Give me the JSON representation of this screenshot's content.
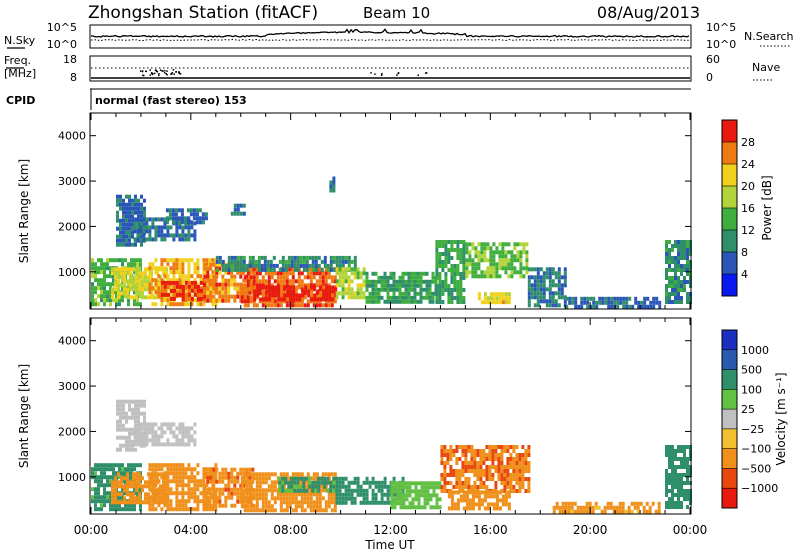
{
  "header": {
    "station": "Zhongshan Station (fitACF)",
    "beam": "Beam 10",
    "date": "08/Aug/2013"
  },
  "top_panels": {
    "nsky_label": "N.Sky",
    "nsky_ticks": [
      "10^5",
      "10^0"
    ],
    "nsearch_label": "N.Search",
    "nsearch_ticks": [
      "10^5",
      "10^0"
    ],
    "freq_label": "Freq.",
    "freq_unit": "[MHz]",
    "freq_ticks": [
      "18",
      "8"
    ],
    "nave_label": "Nave",
    "nave_ticks": [
      "60",
      "0"
    ],
    "cpid_label": "CPID",
    "cpid_text": "normal (fast stereo) 153"
  },
  "colors": {
    "power": [
      "#0a18f0",
      "#2a56b8",
      "#2f8f6a",
      "#3fae3f",
      "#b2d43a",
      "#f0d21e",
      "#f07a12",
      "#e81a10"
    ],
    "velocity": [
      "#1a2fc0",
      "#2a5ab0",
      "#2f8f6a",
      "#62c044",
      "#c0c0c0",
      "#f3c030",
      "#f0901a",
      "#e84810",
      "#e81a10"
    ]
  },
  "chart_data": [
    {
      "type": "heatmap",
      "name": "power",
      "ylabel": "Slant Range [km]",
      "yticks": [
        "1000",
        "2000",
        "3000",
        "4000"
      ],
      "ylim": [
        180,
        4500
      ],
      "xlim": [
        0,
        24
      ],
      "colorbar_label": "Power [dB]",
      "colorbar_ticks": [
        "4",
        "8",
        "12",
        "16",
        "20",
        "24",
        "28"
      ],
      "colorbar_range": [
        0,
        32
      ],
      "blobs": [
        {
          "t0": 1.0,
          "t1": 2.1,
          "r0": 1600,
          "r1": 2700,
          "v": 7
        },
        {
          "t0": 1.7,
          "t1": 4.2,
          "r0": 1700,
          "r1": 2200,
          "v": 8
        },
        {
          "t0": 3.0,
          "t1": 4.6,
          "r0": 2050,
          "r1": 2400,
          "v": 7
        },
        {
          "t0": 5.6,
          "t1": 6.2,
          "r0": 2300,
          "r1": 2500,
          "v": 8
        },
        {
          "t0": 0.0,
          "t1": 2.0,
          "r0": 300,
          "r1": 1300,
          "v": 14
        },
        {
          "t0": 0.8,
          "t1": 3.0,
          "r0": 450,
          "r1": 1100,
          "v": 20
        },
        {
          "t0": 2.3,
          "t1": 5.0,
          "r0": 300,
          "r1": 1300,
          "v": 24
        },
        {
          "t0": 2.8,
          "t1": 4.5,
          "r0": 400,
          "r1": 800,
          "v": 29
        },
        {
          "t0": 4.5,
          "t1": 6.5,
          "r0": 350,
          "r1": 1200,
          "v": 26
        },
        {
          "t0": 6.0,
          "t1": 9.8,
          "r0": 300,
          "r1": 1100,
          "v": 27
        },
        {
          "t0": 6.5,
          "t1": 9.8,
          "r0": 350,
          "r1": 700,
          "v": 30
        },
        {
          "t0": 5.0,
          "t1": 10.6,
          "r0": 1000,
          "r1": 1350,
          "v": 10
        },
        {
          "t0": 9.8,
          "t1": 11.0,
          "r0": 400,
          "r1": 1100,
          "v": 18
        },
        {
          "t0": 11.0,
          "t1": 13.8,
          "r0": 350,
          "r1": 1000,
          "v": 12
        },
        {
          "t0": 13.8,
          "t1": 15.0,
          "r0": 350,
          "r1": 1700,
          "v": 13
        },
        {
          "t0": 15.0,
          "t1": 17.5,
          "r0": 900,
          "r1": 1650,
          "v": 15
        },
        {
          "t0": 15.5,
          "t1": 16.8,
          "r0": 300,
          "r1": 550,
          "v": 22
        },
        {
          "t0": 17.5,
          "t1": 19.0,
          "r0": 250,
          "r1": 1100,
          "v": 8
        },
        {
          "t0": 19.0,
          "t1": 22.8,
          "r0": 200,
          "r1": 450,
          "v": 7
        },
        {
          "t0": 23.0,
          "t1": 24.0,
          "r0": 300,
          "r1": 1700,
          "v": 10
        },
        {
          "t0": 9.55,
          "t1": 9.7,
          "r0": 2800,
          "r1": 3100,
          "v": 9
        }
      ]
    },
    {
      "type": "heatmap",
      "name": "velocity",
      "ylabel": "Slant Range [km]",
      "yticks": [
        "1000",
        "2000",
        "3000",
        "4000"
      ],
      "ylim": [
        180,
        4500
      ],
      "xlim": [
        0,
        24
      ],
      "xticks": [
        "00:00",
        "04:00",
        "08:00",
        "12:00",
        "16:00",
        "20:00",
        "00:00"
      ],
      "xlabel": "Time UT",
      "colorbar_label": "Velocity [m s⁻¹]",
      "colorbar_ticks": [
        "1000",
        "500",
        "100",
        "25",
        "−25",
        "−100",
        "−500",
        "−1000"
      ],
      "colorbar_range": [
        -1500,
        1500
      ],
      "blobs": [
        {
          "t0": 1.0,
          "t1": 2.1,
          "r0": 1600,
          "r1": 2700,
          "v": 10
        },
        {
          "t0": 1.7,
          "t1": 4.2,
          "r0": 1700,
          "r1": 2200,
          "v": 10
        },
        {
          "t0": 0.0,
          "t1": 2.0,
          "r0": 300,
          "r1": 1300,
          "v": 150
        },
        {
          "t0": 0.8,
          "t1": 3.0,
          "r0": 450,
          "r1": 1100,
          "v": -200
        },
        {
          "t0": 2.3,
          "t1": 5.0,
          "r0": 300,
          "r1": 1300,
          "v": -300
        },
        {
          "t0": 4.5,
          "t1": 6.5,
          "r0": 350,
          "r1": 1200,
          "v": -400
        },
        {
          "t0": 6.0,
          "t1": 9.8,
          "r0": 300,
          "r1": 1100,
          "v": -350
        },
        {
          "t0": 7.5,
          "t1": 9.8,
          "r0": 700,
          "r1": 1000,
          "v": 120
        },
        {
          "t0": 9.8,
          "t1": 12.5,
          "r0": 400,
          "r1": 1000,
          "v": 300
        },
        {
          "t0": 12.0,
          "t1": 14.0,
          "r0": 350,
          "r1": 900,
          "v": 60
        },
        {
          "t0": 14.0,
          "t1": 17.5,
          "r0": 700,
          "r1": 1700,
          "v": -450
        },
        {
          "t0": 14.3,
          "t1": 16.8,
          "r0": 300,
          "r1": 700,
          "v": -300
        },
        {
          "t0": 18.5,
          "t1": 22.8,
          "r0": 200,
          "r1": 450,
          "v": -150
        },
        {
          "t0": 23.0,
          "t1": 24.0,
          "r0": 300,
          "r1": 1700,
          "v": 200
        }
      ]
    }
  ]
}
